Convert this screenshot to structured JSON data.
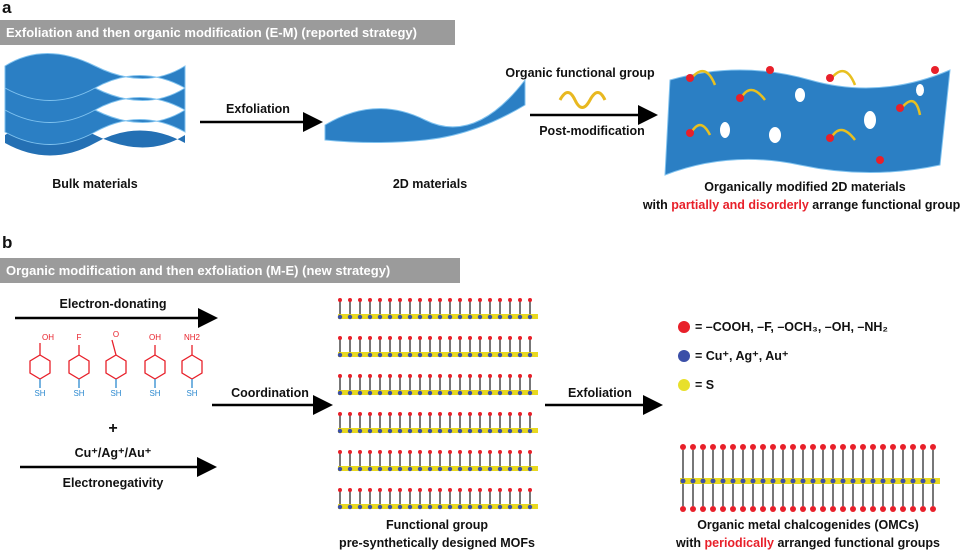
{
  "panel_a": {
    "label": "a",
    "banner": "Exfoliation and then organic modification (E-M) (reported strategy)",
    "bulk_label": "Bulk materials",
    "exfoliation": "Exfoliation",
    "two_d_label": "2D materials",
    "organic_group": "Organic functional group",
    "post_mod": "Post-modification",
    "result_line1": "Organically modified 2D materials",
    "result_line2_pre": "with ",
    "result_line2_highlight": "partially and disorderly",
    "result_line2_post": " arrange functional groups"
  },
  "panel_b": {
    "label": "b",
    "banner": "Organic modification and then exfoliation (M-E) (new strategy)",
    "electron_donating": "Electron-donating",
    "molecules": [
      {
        "top": "OH",
        "sh": "SH"
      },
      {
        "top": "F",
        "sh": "SH"
      },
      {
        "top": "O",
        "sh": "SH"
      },
      {
        "top": "OH",
        "sh": "SH"
      },
      {
        "top": "NH2",
        "sh": "SH"
      }
    ],
    "plus": "+",
    "metals": "Cu⁺/Ag⁺/Au⁺",
    "electronegativity": "Electronegativity",
    "coordination": "Coordination",
    "exfoliation": "Exfoliation",
    "mof_line1": "Functional group",
    "mof_line2": "pre-synthetically designed MOFs",
    "legend": [
      {
        "color": "#e8202a",
        "text": "= –COOH, –F, –OCH₃, –OH, –NH₂"
      },
      {
        "color": "#3b4fa8",
        "text": "= Cu⁺, Ag⁺, Au⁺"
      },
      {
        "color": "#e8e02a",
        "text": "= S"
      }
    ],
    "omc_line1": "Organic metal chalcogenides (OMCs)",
    "omc_line2_pre": "with ",
    "omc_line2_highlight": "periodically",
    "omc_line2_post": " arranged functional groups"
  },
  "colors": {
    "sheet": "#2b7fc4",
    "highlight": "#e8202a",
    "banner": "#9b9b9b",
    "molecule": "#e8202a",
    "thiol": "#2d8ad0"
  }
}
